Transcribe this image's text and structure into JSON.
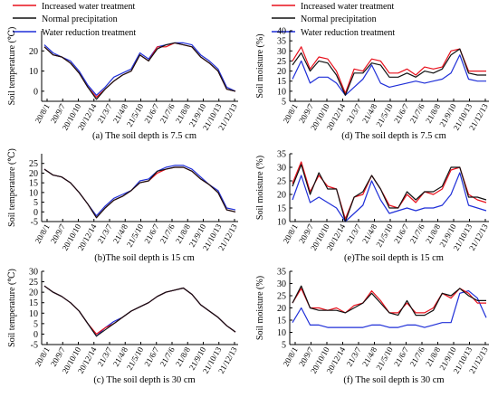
{
  "legend": [
    {
      "label": "Increased water treatment",
      "color": "#e8101c"
    },
    {
      "label": "Normal precipitation",
      "color": "#111111"
    },
    {
      "label": "Water reduction treatment",
      "color": "#1f2fd8"
    }
  ],
  "x_ticks": [
    "20/8/1",
    "20/9/7",
    "20/10/10",
    "20/12/14",
    "21/3/7",
    "21/4/8",
    "21/5/10",
    "21/6/7",
    "21/7/6",
    "21/8/8",
    "21/9/10",
    "21/10/13",
    "21/12/13"
  ],
  "chart_data": [
    {
      "type": "line",
      "caption": "(a) The soil depth is 7.5 cm",
      "ylabel": "Soil temperature (℃)",
      "ylim": [
        -5,
        30
      ],
      "yticks": [
        0,
        10,
        20
      ],
      "series": [
        {
          "name": "Increased water treatment",
          "values": [
            22,
            18,
            17,
            14,
            9,
            2,
            -3,
            1,
            5,
            8,
            10,
            18,
            15,
            22,
            22,
            24,
            23,
            22,
            17,
            14,
            10,
            1,
            0
          ]
        },
        {
          "name": "Normal precipitation",
          "values": [
            22,
            18,
            17,
            14,
            9,
            2,
            -4,
            1,
            5,
            8,
            10,
            18,
            15,
            21,
            23,
            24,
            23,
            22,
            17,
            14,
            10,
            1,
            0
          ]
        },
        {
          "name": "Water reduction treatment",
          "values": [
            23,
            19,
            17,
            15,
            10,
            3,
            -2,
            2,
            7,
            9,
            11,
            19,
            16,
            22,
            23,
            24,
            24,
            23,
            18,
            15,
            11,
            2,
            0
          ]
        }
      ]
    },
    {
      "type": "line",
      "caption": "(d) The soil depth is 7.5 cm",
      "ylabel": "Soil moisture (%)",
      "ylim": [
        5,
        40
      ],
      "yticks": [
        5,
        10,
        15,
        20,
        25,
        30,
        35,
        40
      ],
      "series": [
        {
          "name": "Increased water treatment",
          "values": [
            25,
            32,
            21,
            27,
            26,
            20,
            9,
            21,
            20,
            26,
            25,
            19,
            19,
            21,
            18,
            22,
            21,
            22,
            30,
            31,
            20,
            20,
            20
          ]
        },
        {
          "name": "Normal precipitation",
          "values": [
            23,
            29,
            20,
            25,
            24,
            18,
            8,
            19,
            19,
            24,
            23,
            17,
            17,
            19,
            17,
            20,
            19,
            21,
            28,
            31,
            19,
            18,
            18
          ]
        },
        {
          "name": "Water reduction treatment",
          "values": [
            16,
            25,
            14,
            17,
            17,
            14,
            8,
            12,
            16,
            23,
            14,
            12,
            13,
            14,
            15,
            14,
            15,
            16,
            19,
            28,
            16,
            15,
            15
          ]
        }
      ]
    },
    {
      "type": "line",
      "caption": "(b)The soil depth is 15 cm",
      "ylabel": "Soil temperature (℃)",
      "ylim": [
        -5,
        30
      ],
      "yticks": [
        -5,
        0,
        5,
        10,
        15,
        20,
        25
      ],
      "series": [
        {
          "name": "Increased water treatment",
          "values": [
            22,
            19,
            18,
            15,
            10,
            4,
            -3,
            2,
            6,
            8,
            11,
            15,
            16,
            20,
            22,
            23,
            23,
            21,
            17,
            14,
            10,
            1,
            0
          ]
        },
        {
          "name": "Normal precipitation",
          "values": [
            22,
            19,
            18,
            15,
            10,
            4,
            -3,
            2,
            6,
            8,
            11,
            15,
            16,
            21,
            22,
            23,
            23,
            21,
            17,
            14,
            10,
            1,
            0
          ]
        },
        {
          "name": "Water reduction treatment",
          "values": [
            22,
            19,
            18,
            15,
            10,
            4,
            -2,
            3,
            7,
            9,
            11,
            16,
            17,
            21,
            23,
            24,
            24,
            22,
            18,
            14,
            11,
            2,
            1
          ]
        }
      ]
    },
    {
      "type": "line",
      "caption": "(e)The soil depth is 15 cm",
      "ylabel": "Soil moisture (%)",
      "ylim": [
        10,
        35
      ],
      "yticks": [
        10,
        15,
        20,
        25,
        30,
        35
      ],
      "series": [
        {
          "name": "Increased water treatment",
          "values": [
            24,
            32,
            21,
            27,
            23,
            22,
            11,
            19,
            20,
            27,
            22,
            16,
            15,
            20,
            17,
            21,
            20,
            22,
            29,
            30,
            20,
            18,
            17
          ]
        },
        {
          "name": "Normal precipitation",
          "values": [
            23,
            31,
            20,
            28,
            22,
            22,
            10,
            19,
            21,
            27,
            22,
            15,
            15,
            21,
            18,
            21,
            21,
            23,
            30,
            30,
            19,
            19,
            18
          ]
        },
        {
          "name": "Water reduction treatment",
          "values": [
            18,
            27,
            17,
            19,
            17,
            15,
            10,
            13,
            16,
            25,
            18,
            13,
            14,
            15,
            14,
            15,
            15,
            16,
            20,
            28,
            16,
            15,
            14
          ]
        }
      ]
    },
    {
      "type": "line",
      "caption": "(c) The soil depth is 30 cm",
      "ylabel": "Soil temperature (℃)",
      "ylim": [
        -5,
        30
      ],
      "yticks": [
        -5,
        0,
        5,
        10,
        15,
        20,
        25,
        30
      ],
      "series": [
        {
          "name": "Increased water treatment",
          "values": [
            23,
            20,
            18,
            15,
            11,
            5,
            0,
            3,
            5,
            8,
            11,
            13,
            15,
            18,
            20,
            21,
            22,
            19,
            14,
            11,
            8,
            4,
            1
          ]
        },
        {
          "name": "Normal precipitation",
          "values": [
            23,
            20,
            18,
            15,
            11,
            5,
            -1,
            2,
            5,
            8,
            11,
            13,
            15,
            18,
            20,
            21,
            22,
            19,
            14,
            11,
            8,
            4,
            1
          ]
        },
        {
          "name": "Water reduction treatment",
          "values": [
            23,
            20,
            18,
            15,
            11,
            5,
            -1,
            3,
            6,
            8,
            11,
            13,
            15,
            18,
            20,
            21,
            22,
            19,
            14,
            11,
            8,
            4,
            1
          ]
        }
      ]
    },
    {
      "type": "line",
      "caption": "(f) The soil depth is 30 cm",
      "ylabel": "Soil moisture (%)",
      "ylim": [
        5,
        35
      ],
      "yticks": [
        5,
        10,
        15,
        20,
        25,
        30,
        35
      ],
      "series": [
        {
          "name": "Increased water treatment",
          "values": [
            22,
            28,
            20,
            20,
            19,
            20,
            18,
            21,
            22,
            27,
            23,
            18,
            18,
            22,
            18,
            18,
            20,
            26,
            24,
            28,
            26,
            22,
            22
          ]
        },
        {
          "name": "Normal precipitation",
          "values": [
            22,
            29,
            20,
            19,
            19,
            19,
            18,
            20,
            22,
            26,
            22,
            18,
            17,
            23,
            17,
            17,
            19,
            26,
            25,
            28,
            25,
            23,
            23
          ]
        },
        {
          "name": "Water reduction treatment",
          "values": [
            14,
            20,
            13,
            13,
            12,
            12,
            12,
            12,
            12,
            13,
            13,
            12,
            12,
            13,
            13,
            12,
            13,
            14,
            14,
            26,
            27,
            24,
            16
          ]
        }
      ]
    }
  ]
}
